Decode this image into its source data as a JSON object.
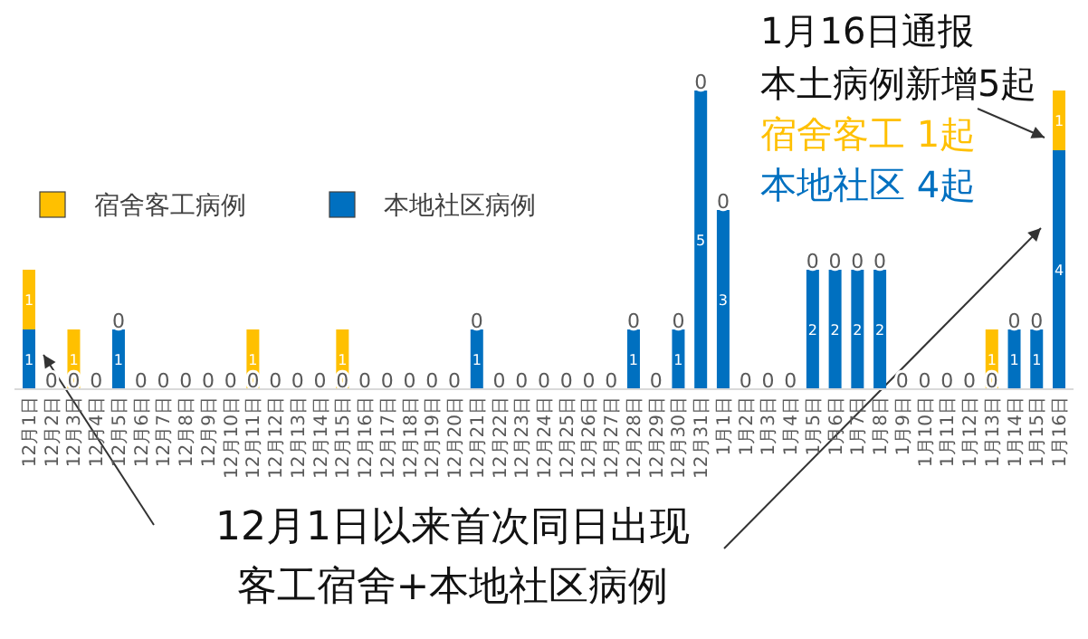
{
  "chart_data": {
    "type": "bar",
    "stacked": true,
    "legend": "top left",
    "data_labels": false,
    "categories": [
      "12月1日",
      "12月2日",
      "12月3日",
      "12月4日",
      "12月5日",
      "12月6日",
      "12月7日",
      "12月8日",
      "12月9日",
      "12月10日",
      "12月11日",
      "12月12日",
      "12月13日",
      "12月14日",
      "12月15日",
      "12月16日",
      "12月17日",
      "12月18日",
      "12月19日",
      "12月20日",
      "12月21日",
      "12月22日",
      "12月23日",
      "12月24日",
      "12月25日",
      "12月26日",
      "12月27日",
      "12月28日",
      "12月29日",
      "12月30日",
      "12月31日",
      "1月1日",
      "1月2日",
      "1月3日",
      "1月4日",
      "1月5日",
      "1月6日",
      "1月7日",
      "1月8日",
      "1月9日",
      "1月10日",
      "1月11日",
      "1月12日",
      "1月13日",
      "1月14日",
      "1月15日",
      "1月16日"
    ],
    "series": [
      {
        "name": "本地社区病例",
        "color": "#0070c0",
        "values": [
          1,
          0,
          0,
          0,
          1,
          0,
          0,
          0,
          0,
          0,
          0,
          0,
          0,
          0,
          0,
          0,
          0,
          0,
          0,
          0,
          1,
          0,
          0,
          0,
          0,
          0,
          0,
          1,
          0,
          1,
          5,
          3,
          0,
          0,
          0,
          2,
          2,
          2,
          2,
          0,
          0,
          0,
          0,
          0,
          1,
          1,
          4
        ],
        "value_labels": [
          "1",
          "0",
          "0",
          "0",
          "1",
          "0",
          "0",
          "0",
          "0",
          "0",
          "0",
          "0",
          "0",
          "0",
          "0",
          "0",
          "0",
          "0",
          "0",
          "0",
          "1",
          "0",
          "0",
          "0",
          "0",
          "0",
          "0",
          "1",
          "0",
          "1",
          "5",
          "3",
          "0",
          "0",
          "0",
          "2",
          "2",
          "2",
          "2",
          "0",
          "0",
          "0",
          "0",
          "0",
          "1",
          "1",
          "4"
        ]
      },
      {
        "name": "宿舍客工病例",
        "color": "#ffc000",
        "values": [
          1,
          0,
          1,
          0,
          0,
          0,
          0,
          0,
          0,
          0,
          1,
          0,
          0,
          0,
          1,
          0,
          0,
          0,
          0,
          0,
          0,
          0,
          0,
          0,
          0,
          0,
          0,
          0,
          0,
          0,
          0,
          0,
          0,
          0,
          0,
          0,
          0,
          0,
          0,
          0,
          0,
          0,
          0,
          1,
          0,
          0,
          1
        ],
        "value_labels": [
          "1",
          null,
          "1",
          null,
          "0",
          null,
          null,
          null,
          null,
          null,
          "1",
          null,
          null,
          null,
          "1",
          null,
          null,
          null,
          null,
          null,
          "0",
          null,
          null,
          null,
          null,
          null,
          null,
          "0",
          null,
          "0",
          "0",
          "0",
          null,
          null,
          null,
          "0",
          "0",
          "0",
          "0",
          null,
          null,
          null,
          null,
          "1",
          "0",
          "0",
          "1"
        ]
      }
    ],
    "annotations": [
      "1月16日通报",
      "本土病例新增5起",
      "宿舍客工 1起",
      "本地社区 4起",
      "12月1日以来首次同日出现",
      "客工宿舍+本地社区病例"
    ]
  }
}
